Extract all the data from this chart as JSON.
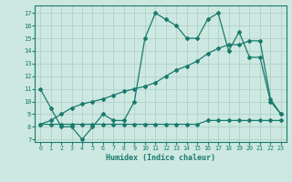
{
  "xlabel": "Humidex (Indice chaleur)",
  "bg_color": "#cce8e0",
  "line_color": "#1a7a6e",
  "grid_color": "#aaccC4",
  "xlim": [
    -0.5,
    23.5
  ],
  "ylim": [
    6.8,
    17.6
  ],
  "xticks": [
    0,
    1,
    2,
    3,
    4,
    5,
    6,
    7,
    8,
    9,
    10,
    11,
    12,
    13,
    14,
    15,
    16,
    17,
    18,
    19,
    20,
    21,
    22,
    23
  ],
  "yticks": [
    7,
    8,
    9,
    10,
    11,
    12,
    13,
    14,
    15,
    16,
    17
  ],
  "line1_x": [
    0,
    1,
    2,
    3,
    4,
    5,
    6,
    7,
    8,
    9,
    10,
    11,
    12,
    13,
    14,
    15,
    16,
    17,
    18,
    19,
    20,
    21,
    22,
    23
  ],
  "line1_y": [
    11.0,
    9.5,
    8.0,
    8.0,
    7.0,
    8.0,
    9.0,
    8.5,
    8.5,
    10.0,
    15.0,
    17.0,
    16.5,
    16.0,
    15.0,
    15.0,
    16.5,
    17.0,
    14.0,
    15.5,
    13.5,
    13.5,
    10.0,
    9.0
  ],
  "line2_x": [
    0,
    1,
    2,
    3,
    4,
    5,
    6,
    7,
    8,
    9,
    10,
    11,
    12,
    13,
    14,
    15,
    16,
    17,
    18,
    19,
    20,
    21,
    22,
    23
  ],
  "line2_y": [
    8.2,
    8.2,
    8.2,
    8.2,
    8.2,
    8.2,
    8.2,
    8.2,
    8.2,
    8.2,
    8.2,
    8.2,
    8.2,
    8.2,
    8.2,
    8.2,
    8.5,
    8.5,
    8.5,
    8.5,
    8.5,
    8.5,
    8.5,
    8.5
  ],
  "line3_x": [
    0,
    1,
    2,
    3,
    4,
    5,
    6,
    7,
    8,
    9,
    10,
    11,
    12,
    13,
    14,
    15,
    16,
    17,
    18,
    19,
    20,
    21,
    22,
    23
  ],
  "line3_y": [
    8.2,
    8.5,
    9.0,
    9.5,
    9.8,
    10.0,
    10.2,
    10.5,
    10.8,
    11.0,
    11.2,
    11.5,
    12.0,
    12.5,
    12.8,
    13.2,
    13.8,
    14.2,
    14.5,
    14.5,
    14.8,
    14.8,
    10.2,
    9.0
  ]
}
